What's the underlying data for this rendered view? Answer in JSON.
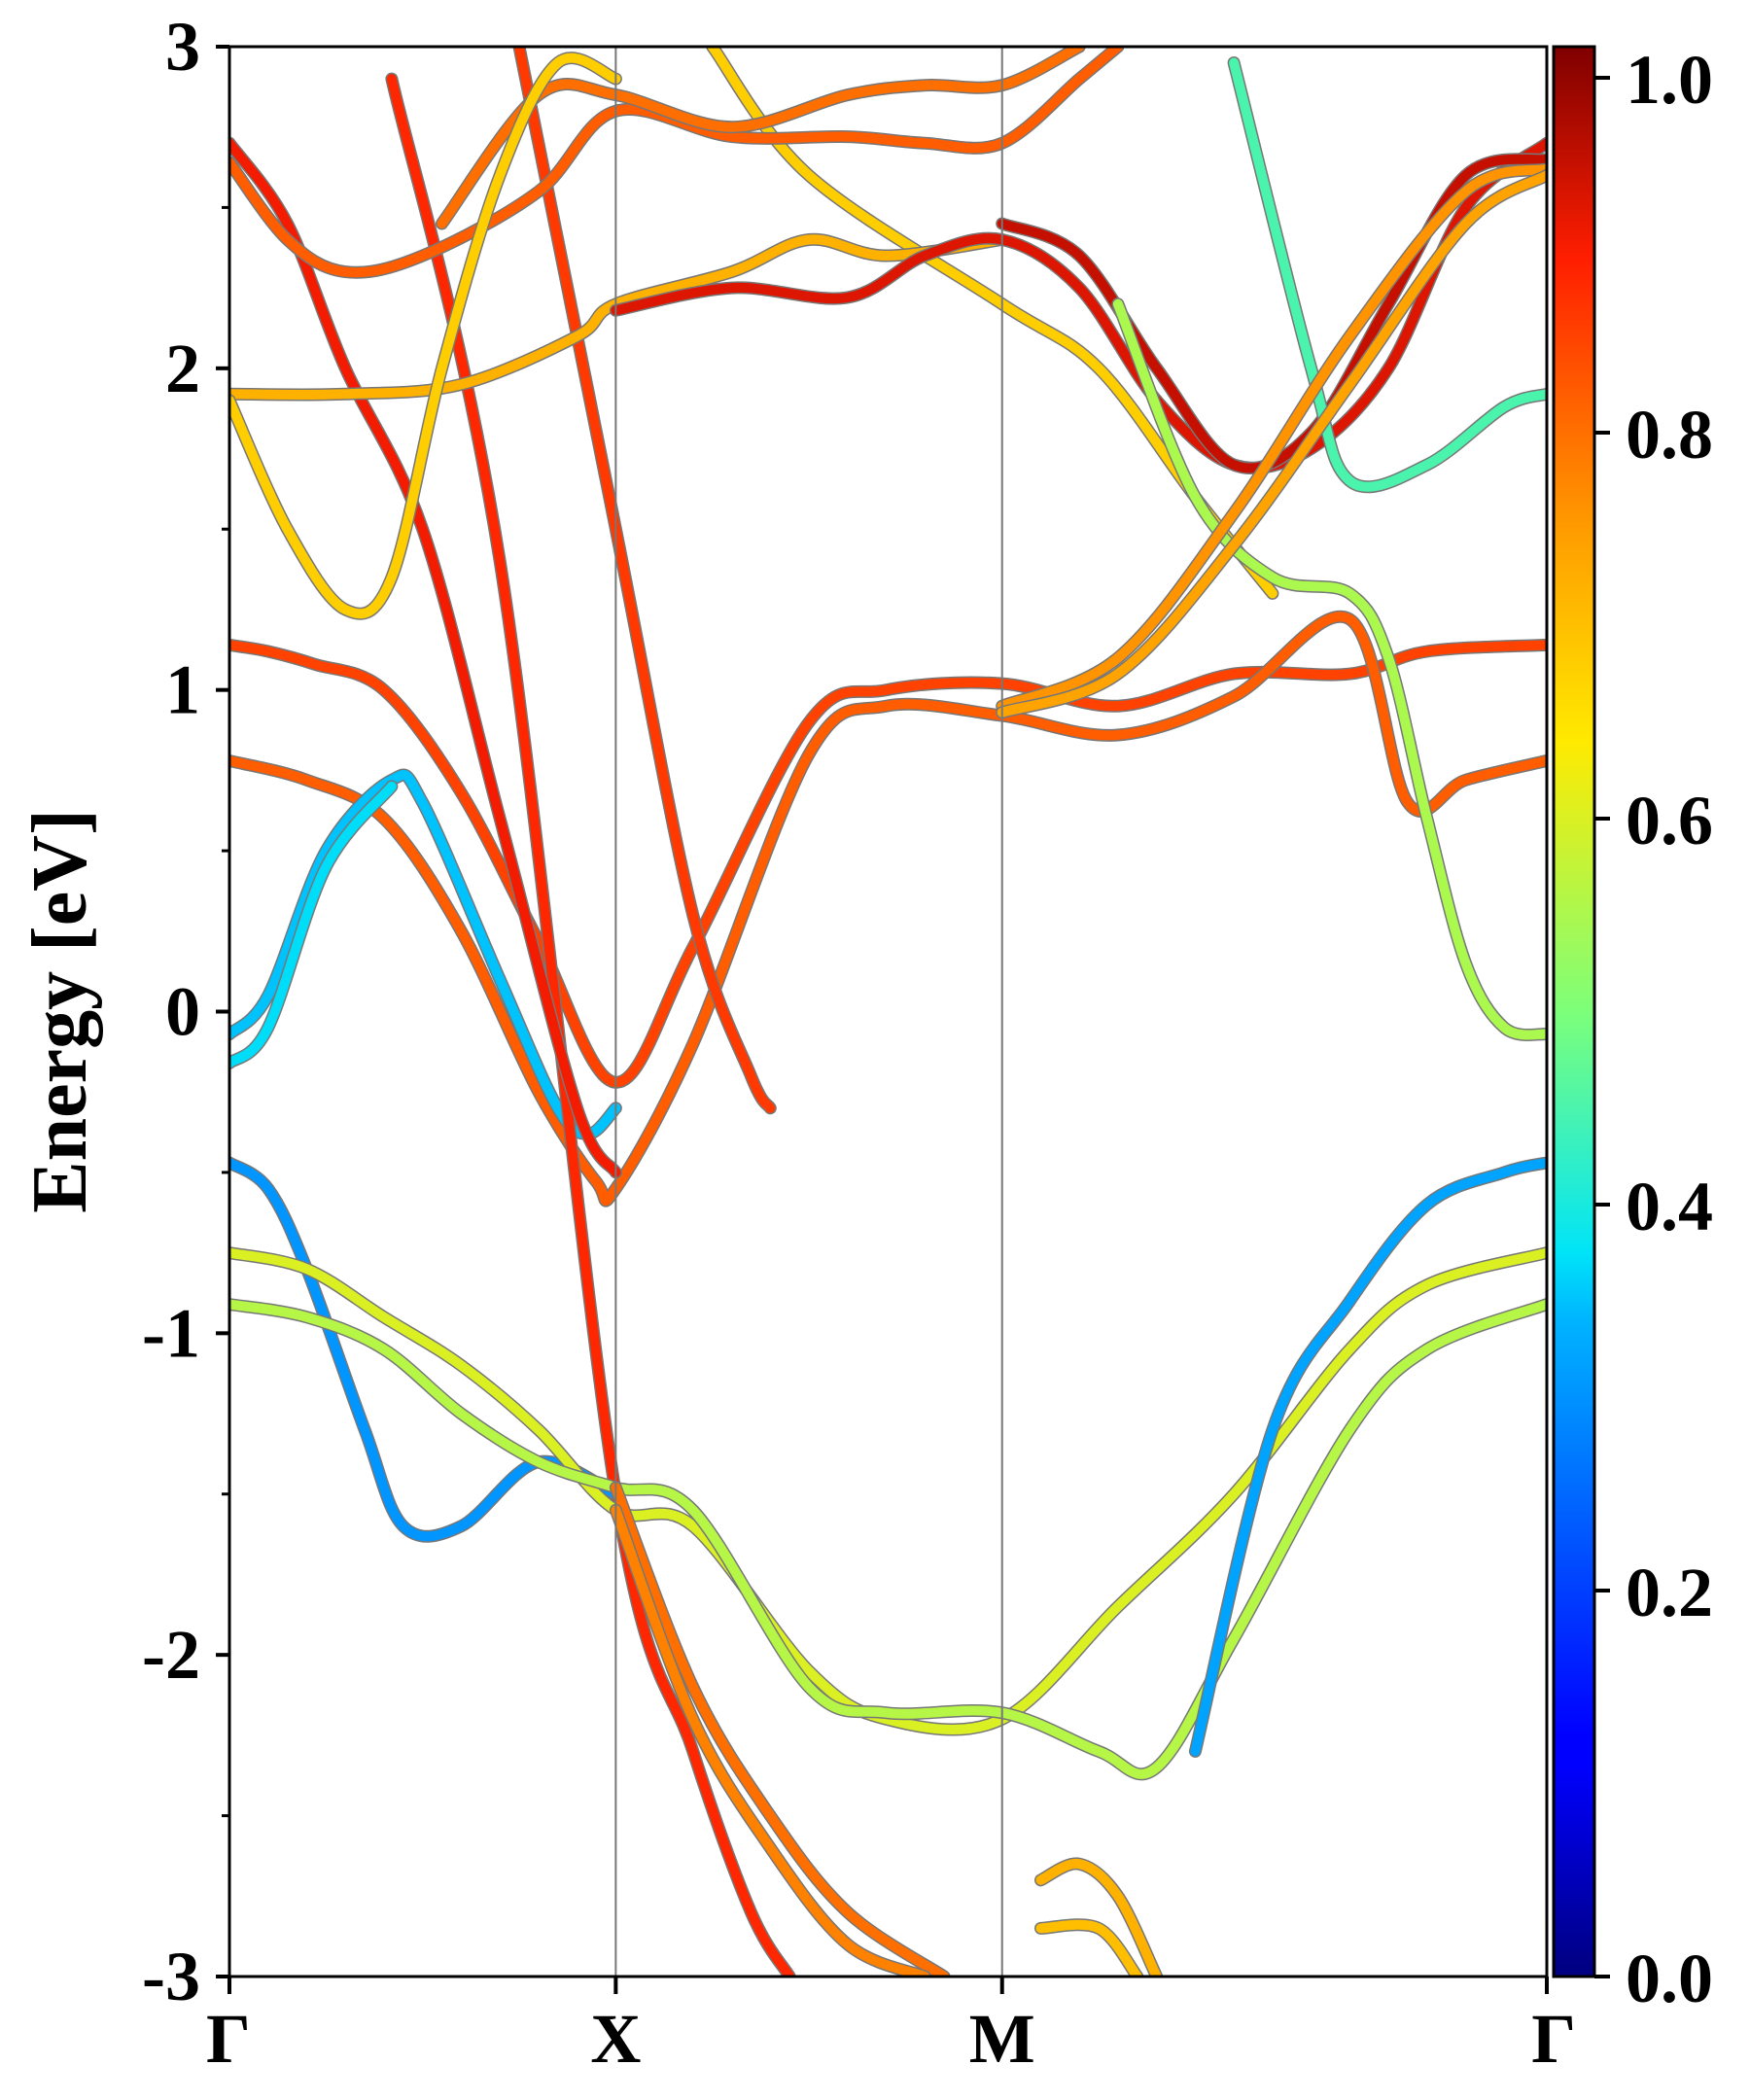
{
  "chart_data": {
    "type": "line",
    "title": "",
    "xlabel": "",
    "ylabel": "Energy [eV]",
    "ylim": [
      -3,
      3
    ],
    "grid": false,
    "k_points": [
      "Γ",
      "X",
      "M",
      "Γ"
    ],
    "k_segments": [
      1,
      1,
      1.41
    ],
    "y_ticks": [
      -3,
      -2,
      -1,
      0,
      1,
      2,
      3
    ],
    "colorbar": {
      "range": [
        0.0,
        1.0
      ],
      "ticks": [
        "0.0",
        "0.2",
        "0.4",
        "0.6",
        "0.8",
        "1.0"
      ],
      "colormap": "jet"
    },
    "series": [
      {
        "weight": 0.85,
        "points": [
          [
            0,
            1.14
          ],
          [
            0.1,
            1.12
          ],
          [
            0.22,
            1.08
          ],
          [
            0.4,
            1.0
          ],
          [
            0.6,
            0.68
          ],
          [
            0.8,
            0.22
          ],
          [
            1.0,
            -0.22
          ],
          [
            1.2,
            0.2
          ],
          [
            1.5,
            0.9
          ],
          [
            1.7,
            1.0
          ],
          [
            2.0,
            1.02
          ],
          [
            2.3,
            0.95
          ],
          [
            2.6,
            1.05
          ],
          [
            2.9,
            1.05
          ],
          [
            3.1,
            1.12
          ],
          [
            3.41,
            1.14
          ]
        ]
      },
      {
        "weight": 0.82,
        "points": [
          [
            0,
            0.78
          ],
          [
            0.2,
            0.72
          ],
          [
            0.4,
            0.6
          ],
          [
            0.6,
            0.25
          ],
          [
            0.8,
            -0.25
          ],
          [
            0.95,
            -0.53
          ],
          [
            1.0,
            -0.55
          ],
          [
            1.2,
            -0.1
          ],
          [
            1.5,
            0.8
          ],
          [
            1.7,
            0.95
          ],
          [
            2.0,
            0.92
          ],
          [
            2.3,
            0.86
          ],
          [
            2.6,
            0.98
          ],
          [
            2.9,
            1.22
          ],
          [
            3.05,
            0.65
          ],
          [
            3.2,
            0.72
          ],
          [
            3.41,
            0.78
          ]
        ]
      },
      {
        "weight": 0.35,
        "points": [
          [
            0,
            -0.07
          ],
          [
            0.1,
            0.05
          ],
          [
            0.25,
            0.5
          ],
          [
            0.42,
            0.72
          ],
          [
            0.5,
            0.65
          ],
          [
            0.7,
            0.1
          ],
          [
            0.85,
            -0.3
          ],
          [
            0.93,
            -0.38
          ],
          [
            1.0,
            -0.3
          ]
        ]
      },
      {
        "weight": 0.37,
        "points": [
          [
            0,
            -0.16
          ],
          [
            0.1,
            -0.05
          ],
          [
            0.25,
            0.45
          ],
          [
            0.42,
            0.7
          ]
        ]
      },
      {
        "weight": 0.86,
        "points": [
          [
            0.75,
            3.0
          ],
          [
            1.0,
            1.5
          ],
          [
            1.2,
            0.3
          ],
          [
            1.35,
            -0.2
          ],
          [
            1.4,
            -0.3
          ]
        ]
      },
      {
        "weight": 0.88,
        "points": [
          [
            0.42,
            2.9
          ],
          [
            0.7,
            1.4
          ],
          [
            1.0,
            -1.5
          ],
          [
            1.2,
            -2.3
          ],
          [
            1.35,
            -2.8
          ],
          [
            1.45,
            -3.0
          ]
        ]
      },
      {
        "weight": 0.9,
        "points": [
          [
            0,
            2.7
          ],
          [
            0.15,
            2.45
          ],
          [
            0.3,
            2.0
          ],
          [
            0.5,
            1.5
          ],
          [
            0.7,
            0.6
          ],
          [
            0.9,
            -0.3
          ],
          [
            1.0,
            -0.5
          ]
        ]
      },
      {
        "weight": 0.3,
        "points": [
          [
            0,
            -0.47
          ],
          [
            0.1,
            -0.55
          ],
          [
            0.2,
            -0.8
          ],
          [
            0.35,
            -1.3
          ],
          [
            0.45,
            -1.6
          ],
          [
            0.6,
            -1.6
          ],
          [
            0.8,
            -1.4
          ],
          [
            1.0,
            -1.5
          ]
        ]
      },
      {
        "weight": 0.6,
        "points": [
          [
            0,
            -0.75
          ],
          [
            0.2,
            -0.8
          ],
          [
            0.4,
            -0.95
          ],
          [
            0.6,
            -1.1
          ],
          [
            0.8,
            -1.3
          ],
          [
            1.0,
            -1.55
          ],
          [
            1.2,
            -1.6
          ],
          [
            1.5,
            -2.05
          ],
          [
            1.7,
            -2.2
          ],
          [
            2.0,
            -2.2
          ],
          [
            2.3,
            -1.85
          ],
          [
            2.6,
            -1.5
          ],
          [
            2.9,
            -1.05
          ],
          [
            3.1,
            -0.85
          ],
          [
            3.41,
            -0.75
          ]
        ]
      },
      {
        "weight": 0.56,
        "points": [
          [
            0,
            -0.91
          ],
          [
            0.2,
            -0.95
          ],
          [
            0.4,
            -1.05
          ],
          [
            0.6,
            -1.25
          ],
          [
            0.8,
            -1.4
          ],
          [
            1.0,
            -1.48
          ],
          [
            1.2,
            -1.55
          ],
          [
            1.5,
            -2.1
          ],
          [
            1.7,
            -2.18
          ],
          [
            2.0,
            -2.18
          ],
          [
            2.25,
            -2.3
          ],
          [
            2.4,
            -2.35
          ],
          [
            2.6,
            -1.95
          ],
          [
            2.9,
            -1.3
          ],
          [
            3.1,
            -1.05
          ],
          [
            3.41,
            -0.91
          ]
        ]
      },
      {
        "weight": 0.32,
        "points": [
          [
            2.5,
            -2.3
          ],
          [
            2.7,
            -1.3
          ],
          [
            2.9,
            -0.9
          ],
          [
            3.1,
            -0.6
          ],
          [
            3.3,
            -0.5
          ],
          [
            3.41,
            -0.47
          ]
        ]
      },
      {
        "weight": 0.8,
        "points": [
          [
            1.0,
            -1.48
          ],
          [
            1.2,
            -2.1
          ],
          [
            1.4,
            -2.5
          ],
          [
            1.6,
            -2.8
          ],
          [
            1.85,
            -3.0
          ]
        ]
      },
      {
        "weight": 0.78,
        "points": [
          [
            1.0,
            -1.55
          ],
          [
            1.2,
            -2.2
          ],
          [
            1.4,
            -2.6
          ],
          [
            1.6,
            -2.9
          ],
          [
            1.8,
            -3.0
          ]
        ]
      },
      {
        "weight": 0.68,
        "points": [
          [
            1.25,
            3.0
          ],
          [
            1.5,
            2.6
          ],
          [
            2.0,
            2.2
          ],
          [
            2.25,
            2.0
          ],
          [
            2.5,
            1.6
          ],
          [
            2.7,
            1.3
          ]
        ]
      },
      {
        "weight": 0.82,
        "points": [
          [
            0,
            2.64
          ],
          [
            0.15,
            2.4
          ],
          [
            0.3,
            2.3
          ],
          [
            0.5,
            2.35
          ],
          [
            0.8,
            2.55
          ],
          [
            1.0,
            2.8
          ],
          [
            1.3,
            2.72
          ],
          [
            1.6,
            2.72
          ],
          [
            1.8,
            2.7
          ],
          [
            2.0,
            2.7
          ],
          [
            2.2,
            2.9
          ],
          [
            2.3,
            3.0
          ]
        ]
      },
      {
        "weight": 0.8,
        "points": [
          [
            0.55,
            2.45
          ],
          [
            0.8,
            2.85
          ],
          [
            1.0,
            2.85
          ],
          [
            1.3,
            2.75
          ],
          [
            1.6,
            2.85
          ],
          [
            1.8,
            2.88
          ],
          [
            2.0,
            2.88
          ],
          [
            2.2,
            3.0
          ]
        ]
      },
      {
        "weight": 0.72,
        "points": [
          [
            0,
            1.92
          ],
          [
            0.3,
            1.92
          ],
          [
            0.6,
            1.95
          ],
          [
            0.9,
            2.1
          ],
          [
            1.0,
            2.2
          ],
          [
            1.3,
            2.3
          ],
          [
            1.5,
            2.4
          ],
          [
            1.7,
            2.35
          ],
          [
            2.0,
            2.4
          ]
        ]
      },
      {
        "weight": 0.68,
        "points": [
          [
            0,
            1.9
          ],
          [
            0.15,
            1.5
          ],
          [
            0.3,
            1.25
          ],
          [
            0.42,
            1.35
          ],
          [
            0.55,
            2.0
          ],
          [
            0.7,
            2.6
          ],
          [
            0.85,
            2.95
          ],
          [
            1.0,
            2.9
          ]
        ]
      },
      {
        "weight": 0.92,
        "points": [
          [
            1.0,
            2.18
          ],
          [
            1.3,
            2.25
          ],
          [
            1.6,
            2.22
          ],
          [
            1.8,
            2.35
          ],
          [
            2.0,
            2.4
          ],
          [
            2.2,
            2.25
          ],
          [
            2.4,
            1.9
          ],
          [
            2.6,
            1.7
          ],
          [
            2.8,
            1.75
          ],
          [
            3.0,
            2.0
          ],
          [
            3.2,
            2.5
          ],
          [
            3.41,
            2.7
          ]
        ]
      },
      {
        "weight": 0.94,
        "points": [
          [
            2.0,
            2.45
          ],
          [
            2.2,
            2.35
          ],
          [
            2.4,
            2.0
          ],
          [
            2.6,
            1.7
          ],
          [
            2.8,
            1.8
          ],
          [
            3.0,
            2.2
          ],
          [
            3.2,
            2.6
          ],
          [
            3.41,
            2.65
          ]
        ]
      },
      {
        "weight": 0.45,
        "points": [
          [
            2.6,
            2.95
          ],
          [
            2.8,
            2.0
          ],
          [
            2.9,
            1.65
          ],
          [
            3.1,
            1.7
          ],
          [
            3.3,
            1.88
          ],
          [
            3.41,
            1.92
          ]
        ]
      },
      {
        "weight": 0.55,
        "points": [
          [
            2.3,
            2.2
          ],
          [
            2.5,
            1.6
          ],
          [
            2.7,
            1.35
          ],
          [
            2.9,
            1.3
          ],
          [
            3.0,
            1.1
          ],
          [
            3.1,
            0.6
          ],
          [
            3.2,
            0.15
          ],
          [
            3.3,
            -0.05
          ],
          [
            3.41,
            -0.07
          ]
        ]
      },
      {
        "weight": 0.76,
        "points": [
          [
            2.0,
            0.95
          ],
          [
            2.3,
            1.1
          ],
          [
            2.6,
            1.55
          ],
          [
            2.9,
            2.1
          ],
          [
            3.2,
            2.55
          ],
          [
            3.41,
            2.62
          ]
        ]
      },
      {
        "weight": 0.74,
        "points": [
          [
            2.0,
            0.93
          ],
          [
            2.3,
            1.05
          ],
          [
            2.6,
            1.45
          ],
          [
            2.9,
            1.95
          ],
          [
            3.2,
            2.45
          ],
          [
            3.41,
            2.6
          ]
        ]
      },
      {
        "weight": 0.72,
        "points": [
          [
            2.1,
            -2.7
          ],
          [
            2.2,
            -2.65
          ],
          [
            2.3,
            -2.75
          ],
          [
            2.4,
            -3.0
          ]
        ]
      },
      {
        "weight": 0.7,
        "points": [
          [
            2.1,
            -2.85
          ],
          [
            2.25,
            -2.85
          ],
          [
            2.35,
            -3.0
          ]
        ]
      }
    ]
  }
}
